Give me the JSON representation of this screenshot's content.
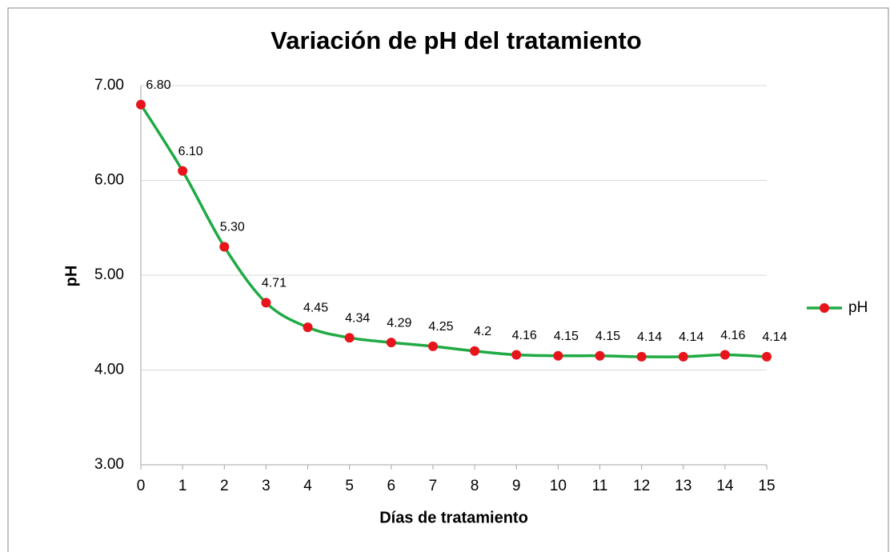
{
  "chart_data": {
    "type": "line",
    "title": "Variación de pH del tratamiento",
    "x_label": "Días de tratamiento",
    "y_label": "pH",
    "x": [
      0,
      1,
      2,
      3,
      4,
      5,
      6,
      7,
      8,
      9,
      10,
      11,
      12,
      13,
      14,
      15
    ],
    "series": [
      {
        "name": "pH",
        "color": "#1faa44",
        "marker_color": "#e8141b",
        "values": [
          6.8,
          6.1,
          5.3,
          4.71,
          4.45,
          4.34,
          4.29,
          4.25,
          4.2,
          4.16,
          4.15,
          4.15,
          4.14,
          4.14,
          4.16,
          4.14
        ],
        "value_labels": [
          "6.80",
          "6.10",
          "5.30",
          "4.71",
          "4.45",
          "4.34",
          "4.29",
          "4.25",
          "4.2",
          "4.16",
          "4.15",
          "4.15",
          "4.14",
          "4.14",
          "4.16",
          "4.14"
        ]
      }
    ],
    "xlim": [
      0,
      15
    ],
    "xticks": [
      0,
      1,
      2,
      3,
      4,
      5,
      6,
      7,
      8,
      9,
      10,
      11,
      12,
      13,
      14,
      15
    ],
    "ylim": [
      3,
      7
    ],
    "yticks": [
      {
        "value": 3,
        "label": "3.00"
      },
      {
        "value": 4,
        "label": "4.00"
      },
      {
        "value": 5,
        "label": "5.00"
      },
      {
        "value": 6,
        "label": "6.00"
      },
      {
        "value": 7,
        "label": "7.00"
      }
    ],
    "grid": true,
    "smooth": true,
    "legend": "right"
  }
}
